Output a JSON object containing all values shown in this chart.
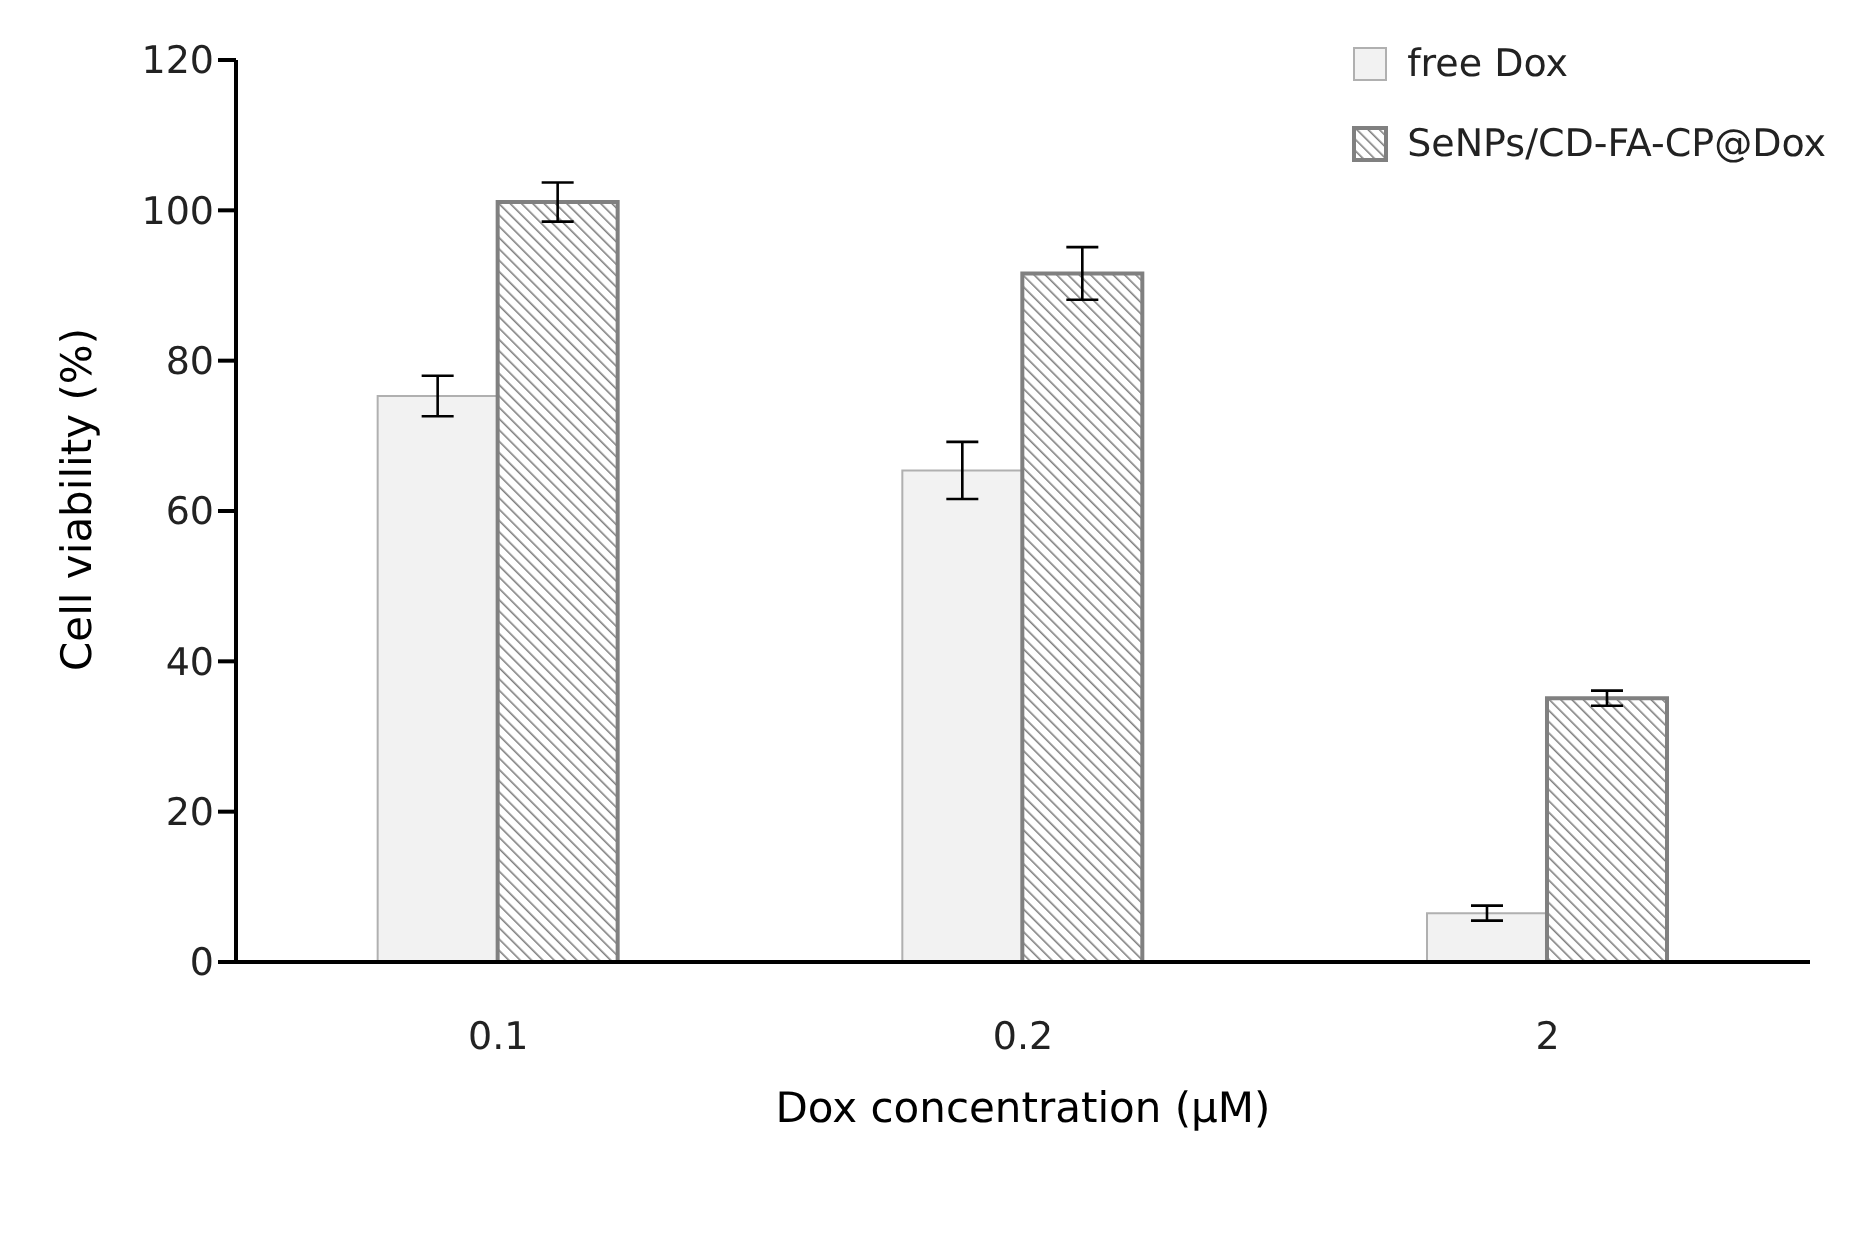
{
  "chart_data": {
    "type": "bar",
    "xlabel": "Dox concentration (µM)",
    "ylabel": "Cell viability (%)",
    "categories": [
      "0.1",
      "0.2",
      "2"
    ],
    "series": [
      {
        "name": "free Dox",
        "color": "#f2f2f2",
        "values": [
          75.3,
          65.4,
          6.5
        ],
        "errors": [
          2.7,
          3.8,
          1
        ]
      },
      {
        "name": "SeNPs/CD-FA-CP@Dox",
        "color": "#808080",
        "values": [
          101.1,
          91.6,
          35.1
        ],
        "errors": [
          2.6,
          3.5,
          1
        ]
      }
    ],
    "ylim": [
      0,
      120
    ],
    "yticks": [
      0,
      20,
      40,
      60,
      80,
      100,
      120
    ],
    "legend": "top right"
  }
}
